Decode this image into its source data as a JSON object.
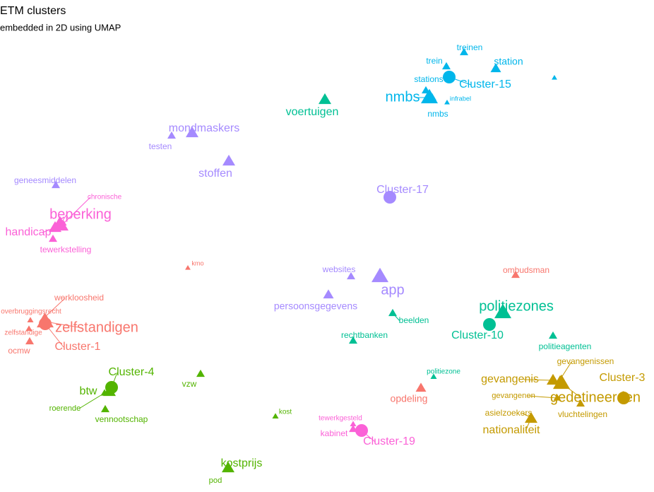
{
  "chart_data": {
    "type": "scatter",
    "title": "ETM clusters",
    "subtitle": "embedded in 2D using UMAP",
    "series": [
      {
        "color": "#00B6EB",
        "points": [
          {
            "label": "Cluster-15",
            "x": 636,
            "y": 587,
            "size": 2,
            "shape": "circle"
          },
          {
            "label": "trein",
            "x": 632,
            "y": 602,
            "size": 1,
            "shape": "triangle"
          },
          {
            "label": "treinen",
            "x": 657,
            "y": 622,
            "size": 1,
            "shape": "triangle"
          },
          {
            "label": "station",
            "x": 702,
            "y": 599,
            "size": 1.5,
            "shape": "triangle"
          },
          {
            "label": "stations",
            "x": 603,
            "y": 568,
            "size": 1,
            "shape": "triangle"
          },
          {
            "label": "nmbs",
            "x": 608,
            "y": 558,
            "size": 3,
            "shape": "triangle"
          },
          {
            "label": "nmbs",
            "x": 612,
            "y": 558,
            "size": 1,
            "shape": "triangle"
          },
          {
            "label": "infrabel",
            "x": 633,
            "y": 551,
            "size": 0.3,
            "shape": "triangle"
          },
          {
            "label": null,
            "x": 785,
            "y": 586,
            "size": 0.3,
            "shape": "triangle"
          }
        ]
      },
      {
        "color": "#00C094",
        "points": [
          {
            "label": "voertuigen",
            "x": 460,
            "y": 555,
            "size": 2,
            "shape": "triangle"
          },
          {
            "label": "politiezones",
            "x": 712,
            "y": 254,
            "size": 3,
            "shape": "triangle"
          },
          {
            "label": "Cluster-10",
            "x": 693,
            "y": 237,
            "size": 2,
            "shape": "circle"
          },
          {
            "label": "beelden",
            "x": 556,
            "y": 253,
            "size": 1,
            "shape": "triangle"
          },
          {
            "label": "rechtbanken",
            "x": 500,
            "y": 214,
            "size": 1,
            "shape": "triangle"
          },
          {
            "label": "politieagenten",
            "x": 783,
            "y": 221,
            "size": 1,
            "shape": "triangle"
          },
          {
            "label": "politiezone",
            "x": 614,
            "y": 163,
            "size": 0.5,
            "shape": "triangle"
          }
        ]
      },
      {
        "color": "#A58AFF",
        "points": [
          {
            "label": "Cluster-17",
            "x": 552,
            "y": 417,
            "size": 2,
            "shape": "circle"
          },
          {
            "label": "mondmaskers",
            "x": 272,
            "y": 508,
            "size": 2,
            "shape": "triangle"
          },
          {
            "label": "testen",
            "x": 243,
            "y": 504,
            "size": 1,
            "shape": "triangle"
          },
          {
            "label": "stoffen",
            "x": 324,
            "y": 468,
            "size": 2,
            "shape": "triangle"
          },
          {
            "label": "geneesmiddelen",
            "x": 79,
            "y": 434,
            "size": 1,
            "shape": "triangle"
          },
          {
            "label": "websites",
            "x": 497,
            "y": 305,
            "size": 1,
            "shape": "triangle"
          },
          {
            "label": "app",
            "x": 538,
            "y": 305,
            "size": 3,
            "shape": "triangle"
          },
          {
            "label": "persoonsgegevens",
            "x": 465,
            "y": 279,
            "size": 1.5,
            "shape": "triangle"
          }
        ]
      },
      {
        "color": "#FB61D7",
        "points": [
          {
            "label": "beperking",
            "x": 85,
            "y": 378,
            "size": 3,
            "shape": "triangle"
          },
          {
            "label": "handicap",
            "x": 78,
            "y": 374,
            "size": 2,
            "shape": "triangle"
          },
          {
            "label": "chronische",
            "x": 90,
            "y": 380,
            "size": 0.5,
            "shape": "triangle"
          },
          {
            "label": "tewerkstelling",
            "x": 75,
            "y": 358,
            "size": 1,
            "shape": "triangle"
          },
          {
            "label": "tewerkgesteld",
            "x": 500,
            "y": 96,
            "size": 0.5,
            "shape": "triangle"
          },
          {
            "label": "kabinet",
            "x": 500,
            "y": 89,
            "size": 1,
            "shape": "triangle"
          },
          {
            "label": "Cluster-19",
            "x": 512,
            "y": 87,
            "size": 2,
            "shape": "circle"
          }
        ]
      },
      {
        "color": "#F8766D",
        "points": [
          {
            "label": "Cluster-1",
            "x": 64,
            "y": 238,
            "size": 2,
            "shape": "circle"
          },
          {
            "label": "zelfstandigen",
            "x": 64,
            "y": 241,
            "size": 3,
            "shape": "triangle"
          },
          {
            "label": "werkloosheid",
            "x": 63,
            "y": 247,
            "size": 1,
            "shape": "triangle"
          },
          {
            "label": "overbruggingsrecht",
            "x": 43,
            "y": 243,
            "size": 0.5,
            "shape": "triangle"
          },
          {
            "label": "zelfstandige",
            "x": 41,
            "y": 231,
            "size": 0.5,
            "shape": "triangle"
          },
          {
            "label": "ocmw",
            "x": 42,
            "y": 213,
            "size": 1,
            "shape": "triangle"
          },
          {
            "label": "kmo",
            "x": 266,
            "y": 317,
            "size": 0.3,
            "shape": "triangle"
          },
          {
            "label": "opdeling",
            "x": 596,
            "y": 147,
            "size": 1.5,
            "shape": "triangle"
          },
          {
            "label": "ombudsman",
            "x": 730,
            "y": 307,
            "size": 1,
            "shape": "triangle"
          }
        ]
      },
      {
        "color": "#C49A00",
        "points": [
          {
            "label": "gevangenis",
            "x": 783,
            "y": 158,
            "size": 2,
            "shape": "triangle"
          },
          {
            "label": "gedetineerden",
            "x": 795,
            "y": 154,
            "size": 3,
            "shape": "triangle"
          },
          {
            "label": "Cluster-3",
            "x": 883,
            "y": 133,
            "size": 2,
            "shape": "circle"
          },
          {
            "label": "gevangenissen",
            "x": 793,
            "y": 159,
            "size": 1,
            "shape": "triangle"
          },
          {
            "label": "gevangenen",
            "x": 789,
            "y": 133,
            "size": 0.8,
            "shape": "triangle"
          },
          {
            "label": "asielzoekers",
            "x": 753,
            "y": 105,
            "size": 1,
            "shape": "triangle"
          },
          {
            "label": "vluchtelingen",
            "x": 822,
            "y": 125,
            "size": 1,
            "shape": "triangle"
          },
          {
            "label": "nationaliteit",
            "x": 752,
            "y": 104,
            "size": 2,
            "shape": "triangle"
          }
        ]
      },
      {
        "color": "#53B400",
        "points": [
          {
            "label": "Cluster-4",
            "x": 158,
            "y": 148,
            "size": 2,
            "shape": "circle"
          },
          {
            "label": "btw",
            "x": 155,
            "y": 142,
            "size": 2,
            "shape": "triangle"
          },
          {
            "label": "roerende",
            "x": 148,
            "y": 140,
            "size": 0.8,
            "shape": "triangle"
          },
          {
            "label": "vennootschap",
            "x": 149,
            "y": 117,
            "size": 1,
            "shape": "triangle"
          },
          {
            "label": "vzw",
            "x": 284,
            "y": 167,
            "size": 1,
            "shape": "triangle"
          },
          {
            "label": "kost",
            "x": 390,
            "y": 107,
            "size": 0.5,
            "shape": "triangle"
          },
          {
            "label": "kostprijs",
            "x": 323,
            "y": 34,
            "size": 2,
            "shape": "triangle"
          },
          {
            "label": "pod",
            "x": 321,
            "y": 32,
            "size": 0.8,
            "shape": "triangle"
          }
        ]
      }
    ]
  }
}
